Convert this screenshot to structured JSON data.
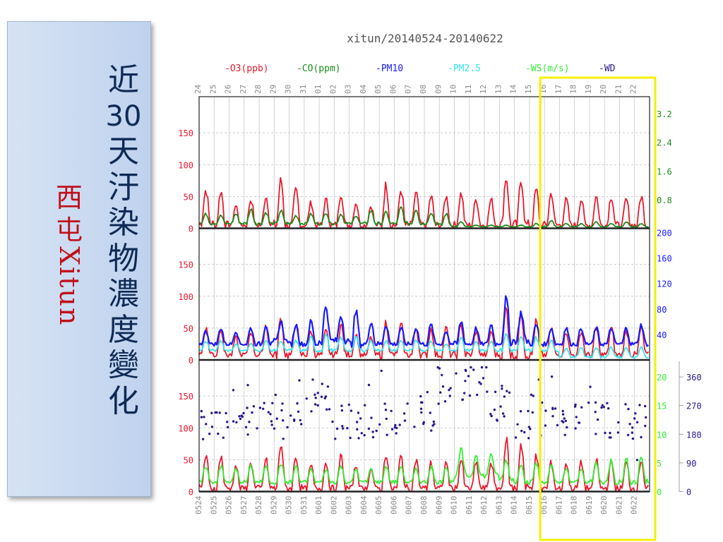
{
  "side_panel": {
    "title_chars": [
      "近",
      "30",
      "天",
      "汙",
      "染",
      "物",
      "濃",
      "度",
      "變",
      "化"
    ],
    "subtitle_cn": [
      "西",
      "屯"
    ],
    "subtitle_en": "Xitun"
  },
  "chart_data": {
    "type": "line",
    "title": "xitun/20140524-20140622",
    "legend": [
      {
        "label": "-O3(ppb)",
        "color": "#e8192c"
      },
      {
        "label": "-CO(ppm)",
        "color": "#1a8c1a"
      },
      {
        "label": "-PM10",
        "color": "#1a1aff"
      },
      {
        "label": "-PM2.5",
        "color": "#33e6ee"
      },
      {
        "label": "-WS(m/s)",
        "color": "#33ee33"
      },
      {
        "label": "-WD",
        "color": "#2a1a8c"
      }
    ],
    "top_ticks": [
      "24",
      "25",
      "26",
      "27",
      "28",
      "29",
      "30",
      "31",
      "01",
      "02",
      "03",
      "04",
      "05",
      "06",
      "07",
      "08",
      "09",
      "10",
      "11",
      "12",
      "13",
      "14",
      "15",
      "16",
      "17",
      "18",
      "19",
      "20",
      "21",
      "22"
    ],
    "bottom_ticks": [
      "0524",
      "0525",
      "0526",
      "0527",
      "0528",
      "0529",
      "0530",
      "0531",
      "0601",
      "0602",
      "0603",
      "0604",
      "0605",
      "0606",
      "0607",
      "0608",
      "0609",
      "0610",
      "0611",
      "0612",
      "0613",
      "0614",
      "0615",
      "0616",
      "0617",
      "0618",
      "0619",
      "0620",
      "0621",
      "0622"
    ],
    "panels": [
      {
        "left_ticks": [
          "0",
          "50",
          "100",
          "150"
        ],
        "right_ticks": [
          "0.8",
          "1.6",
          "2.4",
          "3.2"
        ],
        "right_color": "#1a8c1a",
        "ylim": [
          0,
          200
        ],
        "series": [
          {
            "name": "-O3(ppb)",
            "color": "#e8192c",
            "daily_peaks": [
              60,
              58,
              35,
              45,
              50,
              75,
              60,
              40,
              45,
              55,
              40,
              35,
              68,
              60,
              55,
              50,
              50,
              55,
              45,
              45,
              80,
              75,
              60,
              55,
              45,
              45,
              50,
              50,
              45,
              50
            ],
            "daily_mins": [
              8,
              5,
              5,
              5,
              5,
              5,
              5,
              5,
              5,
              5,
              5,
              5,
              5,
              5,
              5,
              5,
              5,
              5,
              5,
              5,
              5,
              5,
              5,
              5,
              5,
              5,
              5,
              5,
              5,
              5
            ]
          },
          {
            "name": "-CO(ppm)",
            "color": "#1a8c1a",
            "daily_peaks": [
              0.45,
              0.4,
              0.45,
              0.6,
              0.5,
              0.55,
              0.4,
              0.45,
              0.5,
              0.45,
              0.4,
              0.55,
              0.5,
              0.65,
              0.6,
              0.5,
              0.45,
              0.2,
              0.1,
              0.1,
              0.1,
              0.1,
              0.15,
              0.25,
              0.15,
              0.15,
              0.2,
              0.15,
              0.2,
              0.15
            ],
            "daily_mins": [
              0.15,
              0.15,
              0.15,
              0.15,
              0.15,
              0.15,
              0.15,
              0.15,
              0.15,
              0.15,
              0.15,
              0.15,
              0.15,
              0.15,
              0.15,
              0.15,
              0.1,
              0.05,
              0.05,
              0.05,
              0.05,
              0.05,
              0.05,
              0.05,
              0.05,
              0.05,
              0.05,
              0.05,
              0.05,
              0.05
            ]
          }
        ]
      },
      {
        "left_ticks": [
          "0",
          "50",
          "100",
          "150"
        ],
        "right_ticks": [
          "40",
          "80",
          "120",
          "160",
          "200"
        ],
        "right_color": "#1a1aff",
        "ylim": [
          0,
          200
        ],
        "series": [
          {
            "name": "-O3(ppb)",
            "color": "#e8192c",
            "daily_peaks": [
              50,
              50,
              35,
              45,
              55,
              65,
              60,
              45,
              45,
              55,
              40,
              35,
              60,
              55,
              50,
              50,
              50,
              55,
              45,
              45,
              80,
              75,
              60,
              50,
              45,
              45,
              50,
              50,
              45,
              50
            ],
            "daily_mins": [
              10,
              8,
              8,
              8,
              8,
              8,
              8,
              8,
              8,
              8,
              8,
              8,
              8,
              8,
              8,
              8,
              8,
              8,
              8,
              8,
              8,
              8,
              8,
              8,
              8,
              8,
              8,
              8,
              8,
              8
            ]
          },
          {
            "name": "-PM10",
            "color": "#1a1aff",
            "daily_peaks": [
              45,
              50,
              45,
              50,
              55,
              60,
              55,
              60,
              85,
              70,
              75,
              60,
              55,
              50,
              50,
              55,
              45,
              60,
              50,
              55,
              95,
              75,
              55,
              50,
              50,
              50,
              50,
              50,
              50,
              55
            ],
            "daily_mins": [
              25,
              25,
              25,
              25,
              25,
              30,
              25,
              25,
              30,
              30,
              25,
              25,
              25,
              25,
              25,
              25,
              25,
              25,
              25,
              25,
              30,
              30,
              25,
              25,
              25,
              25,
              25,
              25,
              25,
              25
            ]
          },
          {
            "name": "-PM2.5",
            "color": "#33e6ee",
            "daily_peaks": [
              30,
              30,
              25,
              25,
              30,
              30,
              30,
              35,
              40,
              35,
              35,
              30,
              30,
              30,
              30,
              30,
              25,
              35,
              30,
              30,
              40,
              35,
              35,
              30,
              20,
              20,
              20,
              20,
              20,
              20
            ],
            "daily_mins": [
              15,
              15,
              15,
              15,
              15,
              15,
              15,
              15,
              15,
              15,
              15,
              15,
              15,
              15,
              15,
              15,
              15,
              15,
              15,
              15,
              15,
              15,
              15,
              15,
              5,
              5,
              5,
              5,
              5,
              5
            ]
          }
        ]
      },
      {
        "left_ticks": [
          "0",
          "50",
          "100",
          "150"
        ],
        "right_ticks_ws": [
          "0",
          "5",
          "10",
          "15",
          "20"
        ],
        "right_ticks_wd": [
          "0",
          "90",
          "180",
          "270",
          "360"
        ],
        "ws_color": "#33ee33",
        "wd_color": "#2a1a8c",
        "ylim": [
          0,
          200
        ],
        "series": [
          {
            "name": "-O3(ppb)",
            "color": "#e8192c",
            "daily_peaks": [
              55,
              55,
              40,
              45,
              50,
              75,
              55,
              40,
              45,
              55,
              40,
              35,
              60,
              55,
              50,
              45,
              45,
              50,
              45,
              45,
              80,
              75,
              55,
              45,
              45,
              45,
              50,
              45,
              45,
              50
            ],
            "daily_mins": [
              5,
              5,
              5,
              5,
              5,
              5,
              5,
              5,
              5,
              5,
              5,
              5,
              5,
              5,
              5,
              5,
              5,
              5,
              5,
              5,
              5,
              5,
              5,
              5,
              5,
              5,
              5,
              5,
              5,
              5
            ]
          },
          {
            "name": "-WS(m/s)",
            "color": "#33ee33",
            "daily_peaks": [
              40,
              40,
              35,
              40,
              40,
              45,
              40,
              35,
              35,
              40,
              35,
              35,
              40,
              40,
              35,
              40,
              40,
              65,
              60,
              60,
              50,
              45,
              45,
              40,
              35,
              35,
              45,
              50,
              50,
              55
            ],
            "daily_mins": [
              15,
              15,
              15,
              15,
              15,
              15,
              15,
              15,
              15,
              15,
              15,
              15,
              15,
              15,
              15,
              15,
              15,
              25,
              25,
              25,
              20,
              15,
              15,
              15,
              15,
              15,
              15,
              15,
              15,
              15
            ]
          }
        ],
        "wd_clusters": [
          {
            "day_start": 0,
            "day_end": 7,
            "center": 110
          },
          {
            "day_start": 7,
            "day_end": 9,
            "center": 150
          },
          {
            "day_start": 9,
            "day_end": 13,
            "center": 110
          },
          {
            "day_start": 13,
            "day_end": 16,
            "center": 120
          },
          {
            "day_start": 16,
            "day_end": 19,
            "center": 170
          },
          {
            "day_start": 19,
            "day_end": 21,
            "center": 140
          },
          {
            "day_start": 21,
            "day_end": 30,
            "center": 110
          }
        ]
      }
    ],
    "highlight": {
      "from_day": 23,
      "to_day": 30,
      "color": "#f5f000"
    }
  }
}
